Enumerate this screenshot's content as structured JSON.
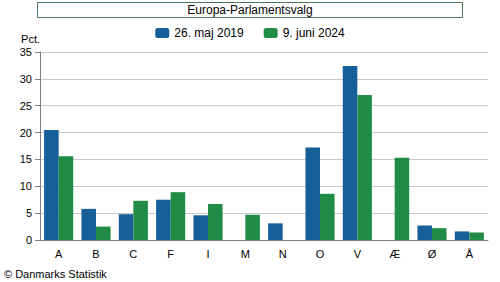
{
  "chart_data": {
    "type": "bar",
    "title": "Europa-Parlamentsvalg",
    "y_label": "Pct.",
    "annotations": [
      "© Danmarks Statistik"
    ],
    "categories": [
      "A",
      "B",
      "C",
      "F",
      "I",
      "M",
      "N",
      "O",
      "V",
      "Æ",
      "Ø",
      "Å"
    ],
    "series": [
      {
        "name": "26. maj 2019",
        "color": "#175f98",
        "values": [
          20.5,
          5.8,
          4.8,
          7.5,
          4.6,
          null,
          3.1,
          17.2,
          32.4,
          null,
          2.7,
          1.6
        ]
      },
      {
        "name": "9. juni 2024",
        "color": "#218c45",
        "values": [
          15.6,
          2.5,
          7.3,
          8.9,
          6.7,
          4.7,
          null,
          8.6,
          27.0,
          15.3,
          2.2,
          1.4
        ]
      }
    ],
    "ylim": [
      0,
      35
    ],
    "yticks": [
      0,
      5,
      10,
      15,
      20,
      25,
      30,
      35
    ],
    "grid": true,
    "legend": "top"
  }
}
